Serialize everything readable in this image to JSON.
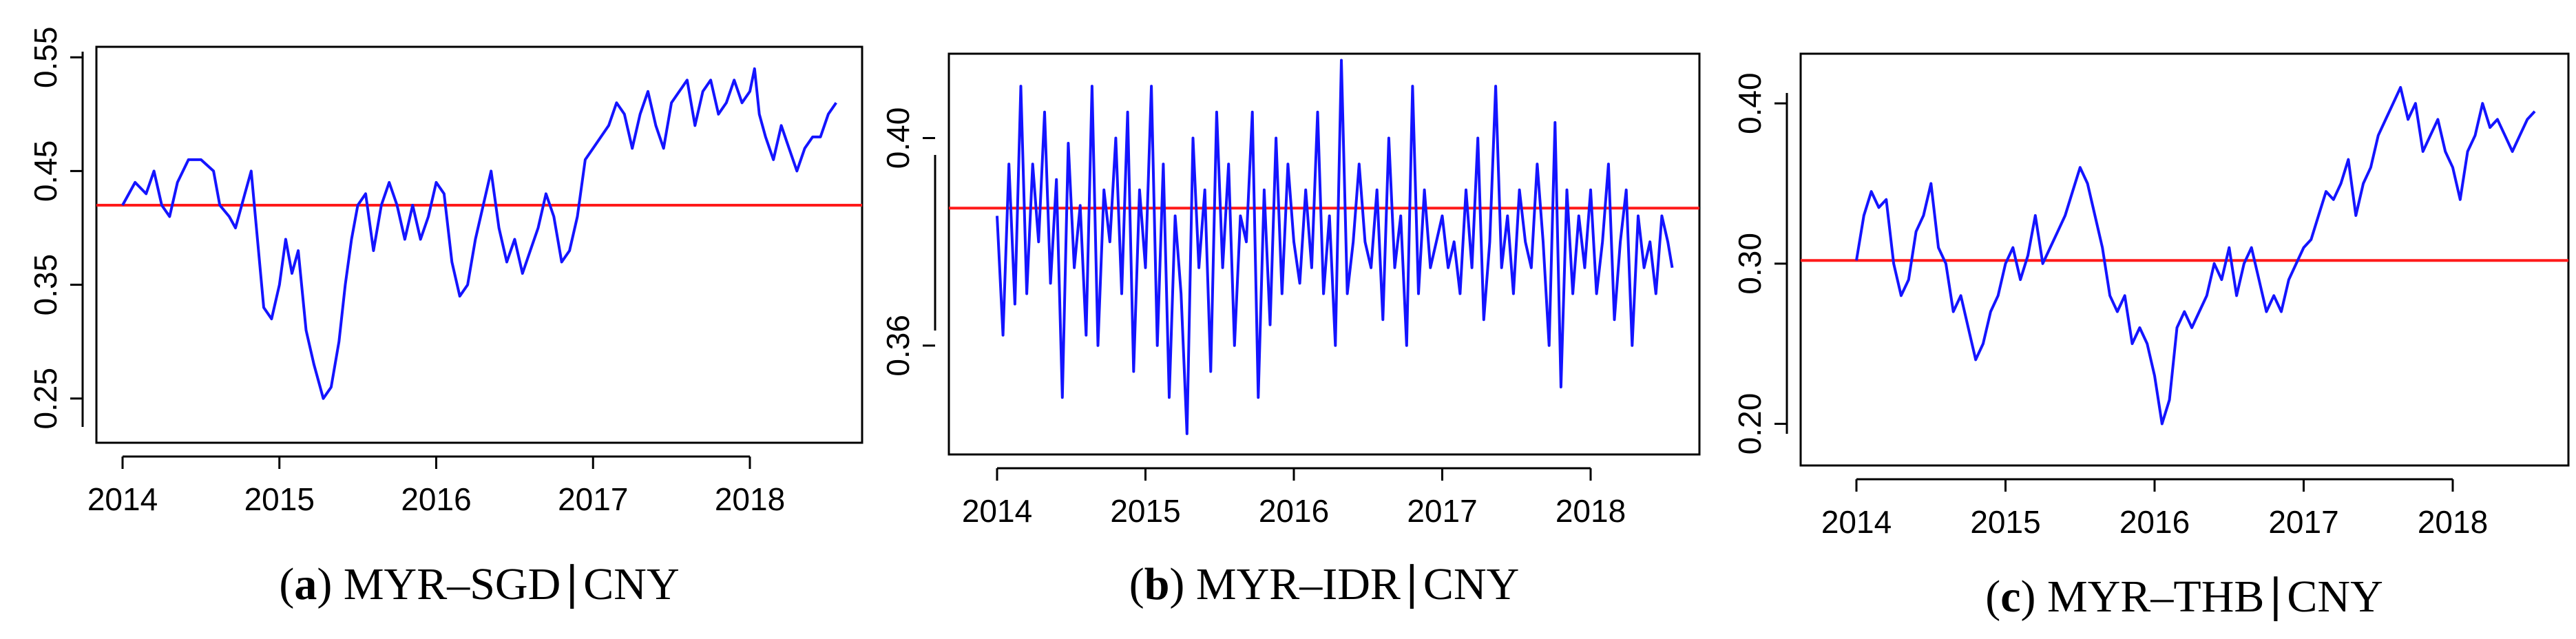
{
  "chart_data": [
    {
      "type": "line",
      "caption": {
        "letter": "a",
        "text": "MYR–SGD∣CNY"
      },
      "xlim": [
        2014,
        2018.6
      ],
      "xticks": [
        2014,
        2015,
        2016,
        2017,
        2018
      ],
      "xtick_labels": [
        "2014",
        "2015",
        "2016",
        "2017",
        "2018"
      ],
      "ylim": [
        0.225,
        0.555
      ],
      "yticks": [
        0.25,
        0.35,
        0.45,
        0.55
      ],
      "ytick_labels": [
        "0.25",
        "0.35",
        "0.45",
        "0.55"
      ],
      "hline": 0.42,
      "colors": {
        "series": "#1414ff",
        "hline": "#ff1a1a"
      },
      "series": [
        {
          "x": [
            2014.0,
            2014.08,
            2014.15,
            2014.2,
            2014.25,
            2014.3,
            2014.35,
            2014.42,
            2014.5,
            2014.58,
            2014.62,
            2014.68,
            2014.72,
            2014.78,
            2014.82,
            2014.86,
            2014.9,
            2014.95,
            2015.0,
            2015.04,
            2015.08,
            2015.12,
            2015.17,
            2015.22,
            2015.28,
            2015.33,
            2015.38,
            2015.42,
            2015.46,
            2015.5,
            2015.55,
            2015.6,
            2015.65,
            2015.7,
            2015.75,
            2015.8,
            2015.85,
            2015.9,
            2015.95,
            2016.0,
            2016.05,
            2016.1,
            2016.15,
            2016.2,
            2016.25,
            2016.3,
            2016.35,
            2016.4,
            2016.45,
            2016.5,
            2016.55,
            2016.6,
            2016.65,
            2016.7,
            2016.75,
            2016.8,
            2016.85,
            2016.9,
            2016.95,
            2017.0,
            2017.05,
            2017.1,
            2017.15,
            2017.2,
            2017.25,
            2017.3,
            2017.35,
            2017.4,
            2017.45,
            2017.5,
            2017.55,
            2017.6,
            2017.65,
            2017.7,
            2017.75,
            2017.8,
            2017.85,
            2017.9,
            2017.95,
            2018.0,
            2018.03,
            2018.06,
            2018.1,
            2018.15,
            2018.2,
            2018.25,
            2018.3,
            2018.35,
            2018.4,
            2018.45,
            2018.5,
            2018.55
          ],
          "y": [
            0.42,
            0.44,
            0.43,
            0.45,
            0.42,
            0.41,
            0.44,
            0.46,
            0.46,
            0.45,
            0.42,
            0.41,
            0.4,
            0.43,
            0.45,
            0.39,
            0.33,
            0.32,
            0.35,
            0.39,
            0.36,
            0.38,
            0.31,
            0.28,
            0.25,
            0.26,
            0.3,
            0.35,
            0.39,
            0.42,
            0.43,
            0.38,
            0.42,
            0.44,
            0.42,
            0.39,
            0.42,
            0.39,
            0.41,
            0.44,
            0.43,
            0.37,
            0.34,
            0.35,
            0.39,
            0.42,
            0.45,
            0.4,
            0.37,
            0.39,
            0.36,
            0.38,
            0.4,
            0.43,
            0.41,
            0.37,
            0.38,
            0.41,
            0.46,
            0.47,
            0.48,
            0.49,
            0.51,
            0.5,
            0.47,
            0.5,
            0.52,
            0.49,
            0.47,
            0.51,
            0.52,
            0.53,
            0.49,
            0.52,
            0.53,
            0.5,
            0.51,
            0.53,
            0.51,
            0.52,
            0.54,
            0.5,
            0.48,
            0.46,
            0.49,
            0.47,
            0.45,
            0.47,
            0.48,
            0.48,
            0.5,
            0.51
          ]
        }
      ]
    },
    {
      "type": "line",
      "caption": {
        "letter": "b",
        "text": "MYR–IDR∣CNY"
      },
      "xlim": [
        2014,
        2018.6
      ],
      "xticks": [
        2014,
        2015,
        2016,
        2017,
        2018
      ],
      "xtick_labels": [
        "2014",
        "2015",
        "2016",
        "2017",
        "2018"
      ],
      "ylim": [
        0.341,
        0.414
      ],
      "yticks": [
        0.36,
        0.4
      ],
      "ytick_labels": [
        "0.36",
        "0.40"
      ],
      "hline": 0.3865,
      "colors": {
        "series": "#1414ff",
        "hline": "#ff1a1a"
      },
      "series": [
        {
          "x": [
            2014.0,
            2014.04,
            2014.08,
            2014.12,
            2014.16,
            2014.2,
            2014.24,
            2014.28,
            2014.32,
            2014.36,
            2014.4,
            2014.44,
            2014.48,
            2014.52,
            2014.56,
            2014.6,
            2014.64,
            2014.68,
            2014.72,
            2014.76,
            2014.8,
            2014.84,
            2014.88,
            2014.92,
            2014.96,
            2015.0,
            2015.04,
            2015.08,
            2015.12,
            2015.16,
            2015.2,
            2015.24,
            2015.28,
            2015.32,
            2015.36,
            2015.4,
            2015.44,
            2015.48,
            2015.52,
            2015.56,
            2015.6,
            2015.64,
            2015.68,
            2015.72,
            2015.76,
            2015.8,
            2015.84,
            2015.88,
            2015.92,
            2015.96,
            2016.0,
            2016.04,
            2016.08,
            2016.12,
            2016.16,
            2016.2,
            2016.24,
            2016.28,
            2016.32,
            2016.36,
            2016.4,
            2016.44,
            2016.48,
            2016.52,
            2016.56,
            2016.6,
            2016.64,
            2016.68,
            2016.72,
            2016.76,
            2016.8,
            2016.84,
            2016.88,
            2016.92,
            2016.96,
            2017.0,
            2017.04,
            2017.08,
            2017.12,
            2017.16,
            2017.2,
            2017.24,
            2017.28,
            2017.32,
            2017.36,
            2017.4,
            2017.44,
            2017.48,
            2017.52,
            2017.56,
            2017.6,
            2017.64,
            2017.68,
            2017.72,
            2017.76,
            2017.8,
            2017.84,
            2017.88,
            2017.92,
            2017.96,
            2018.0,
            2018.04,
            2018.08,
            2018.12,
            2018.16,
            2018.2,
            2018.24,
            2018.28,
            2018.32,
            2018.36,
            2018.4,
            2018.44,
            2018.48,
            2018.52,
            2018.55
          ],
          "y": [
            0.385,
            0.362,
            0.395,
            0.368,
            0.41,
            0.37,
            0.395,
            0.38,
            0.405,
            0.372,
            0.392,
            0.35,
            0.399,
            0.375,
            0.387,
            0.362,
            0.41,
            0.36,
            0.39,
            0.38,
            0.4,
            0.37,
            0.405,
            0.355,
            0.39,
            0.375,
            0.41,
            0.36,
            0.395,
            0.35,
            0.385,
            0.37,
            0.343,
            0.4,
            0.375,
            0.39,
            0.355,
            0.405,
            0.375,
            0.395,
            0.36,
            0.385,
            0.38,
            0.405,
            0.35,
            0.39,
            0.364,
            0.4,
            0.37,
            0.395,
            0.38,
            0.372,
            0.39,
            0.375,
            0.405,
            0.37,
            0.385,
            0.36,
            0.415,
            0.37,
            0.38,
            0.395,
            0.38,
            0.375,
            0.39,
            0.365,
            0.4,
            0.375,
            0.385,
            0.36,
            0.41,
            0.37,
            0.39,
            0.375,
            0.38,
            0.385,
            0.375,
            0.38,
            0.37,
            0.39,
            0.375,
            0.4,
            0.365,
            0.38,
            0.41,
            0.375,
            0.385,
            0.37,
            0.39,
            0.38,
            0.375,
            0.395,
            0.38,
            0.36,
            0.403,
            0.352,
            0.39,
            0.37,
            0.385,
            0.375,
            0.39,
            0.37,
            0.38,
            0.395,
            0.365,
            0.38,
            0.39,
            0.36,
            0.385,
            0.375,
            0.38,
            0.37,
            0.385,
            0.38,
            0.375
          ]
        }
      ]
    },
    {
      "type": "line",
      "caption": {
        "letter": "c",
        "text": "MYR–THB∣CNY"
      },
      "xlim": [
        2014,
        2018.6
      ],
      "xticks": [
        2014,
        2015,
        2016,
        2017,
        2018
      ],
      "xtick_labels": [
        "2014",
        "2015",
        "2016",
        "2017",
        "2018"
      ],
      "ylim": [
        0.18,
        0.425
      ],
      "yticks": [
        0.2,
        0.3,
        0.4
      ],
      "ytick_labels": [
        "0.20",
        "0.30",
        "0.40"
      ],
      "hline": 0.302,
      "colors": {
        "series": "#1414ff",
        "hline": "#ff1a1a"
      },
      "series": [
        {
          "x": [
            2014.0,
            2014.05,
            2014.1,
            2014.15,
            2014.2,
            2014.25,
            2014.3,
            2014.35,
            2014.4,
            2014.45,
            2014.5,
            2014.55,
            2014.6,
            2014.65,
            2014.7,
            2014.75,
            2014.8,
            2014.85,
            2014.9,
            2014.95,
            2015.0,
            2015.05,
            2015.1,
            2015.15,
            2015.2,
            2015.25,
            2015.3,
            2015.35,
            2015.4,
            2015.45,
            2015.5,
            2015.55,
            2015.6,
            2015.65,
            2015.7,
            2015.75,
            2015.8,
            2015.85,
            2015.9,
            2015.95,
            2016.0,
            2016.05,
            2016.1,
            2016.15,
            2016.2,
            2016.25,
            2016.3,
            2016.35,
            2016.4,
            2016.45,
            2016.5,
            2016.55,
            2016.6,
            2016.65,
            2016.7,
            2016.75,
            2016.8,
            2016.85,
            2016.9,
            2016.95,
            2017.0,
            2017.05,
            2017.1,
            2017.15,
            2017.2,
            2017.25,
            2017.3,
            2017.35,
            2017.4,
            2017.45,
            2017.5,
            2017.55,
            2017.6,
            2017.65,
            2017.7,
            2017.75,
            2017.8,
            2017.85,
            2017.9,
            2017.95,
            2018.0,
            2018.05,
            2018.1,
            2018.15,
            2018.2,
            2018.25,
            2018.3,
            2018.35,
            2018.4,
            2018.45,
            2018.5,
            2018.55
          ],
          "y": [
            0.302,
            0.33,
            0.345,
            0.335,
            0.34,
            0.3,
            0.28,
            0.29,
            0.32,
            0.33,
            0.35,
            0.31,
            0.3,
            0.27,
            0.28,
            0.26,
            0.24,
            0.25,
            0.27,
            0.28,
            0.3,
            0.31,
            0.29,
            0.305,
            0.33,
            0.3,
            0.31,
            0.32,
            0.33,
            0.345,
            0.36,
            0.35,
            0.33,
            0.31,
            0.28,
            0.27,
            0.28,
            0.25,
            0.26,
            0.25,
            0.23,
            0.2,
            0.215,
            0.26,
            0.27,
            0.26,
            0.27,
            0.28,
            0.3,
            0.29,
            0.31,
            0.28,
            0.3,
            0.31,
            0.29,
            0.27,
            0.28,
            0.27,
            0.29,
            0.3,
            0.31,
            0.315,
            0.33,
            0.345,
            0.34,
            0.35,
            0.365,
            0.33,
            0.35,
            0.36,
            0.38,
            0.39,
            0.4,
            0.41,
            0.39,
            0.4,
            0.37,
            0.38,
            0.39,
            0.37,
            0.36,
            0.34,
            0.37,
            0.38,
            0.4,
            0.385,
            0.39,
            0.38,
            0.37,
            0.38,
            0.39,
            0.395
          ]
        }
      ]
    }
  ]
}
